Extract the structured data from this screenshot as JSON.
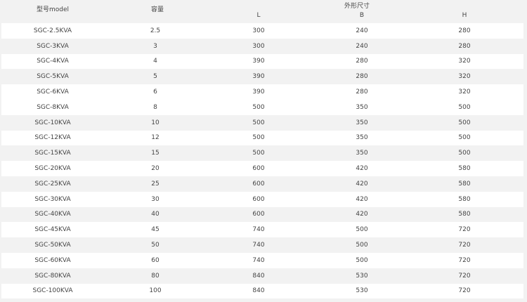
{
  "header": {
    "model": "型号model",
    "capacity": "容量",
    "dimensions": "外形尺寸",
    "L": "L",
    "B": "B",
    "H": "H"
  },
  "rows": [
    [
      "SGC-2.5KVA",
      "2.5",
      "300",
      "240",
      "280"
    ],
    [
      "SGC-3KVA",
      "3",
      "300",
      "240",
      "280"
    ],
    [
      "SGC-4KVA",
      "4",
      "390",
      "280",
      "320"
    ],
    [
      "SGC-5KVA",
      "5",
      "390",
      "280",
      "320"
    ],
    [
      "SGC-6KVA",
      "6",
      "390",
      "280",
      "320"
    ],
    [
      "SGC-8KVA",
      "8",
      "500",
      "350",
      "500"
    ],
    [
      "SGC-10KVA",
      "10",
      "500",
      "350",
      "500"
    ],
    [
      "SGC-12KVA",
      "12",
      "500",
      "350",
      "500"
    ],
    [
      "SGC-15KVA",
      "15",
      "500",
      "350",
      "500"
    ],
    [
      "SGC-20KVA",
      "20",
      "600",
      "420",
      "580"
    ],
    [
      "SGC-25KVA",
      "25",
      "600",
      "420",
      "580"
    ],
    [
      "SGC-30KVA",
      "30",
      "600",
      "420",
      "580"
    ],
    [
      "SGC-40KVA",
      "40",
      "600",
      "420",
      "580"
    ],
    [
      "SGC-45KVA",
      "45",
      "740",
      "500",
      "720"
    ],
    [
      "SGC-50KVA",
      "50",
      "740",
      "500",
      "720"
    ],
    [
      "SGC-60KVA",
      "60",
      "740",
      "500",
      "720"
    ],
    [
      "SGC-80KVA",
      "80",
      "840",
      "530",
      "720"
    ],
    [
      "SGC-100KVA",
      "100",
      "840",
      "530",
      "720"
    ]
  ]
}
